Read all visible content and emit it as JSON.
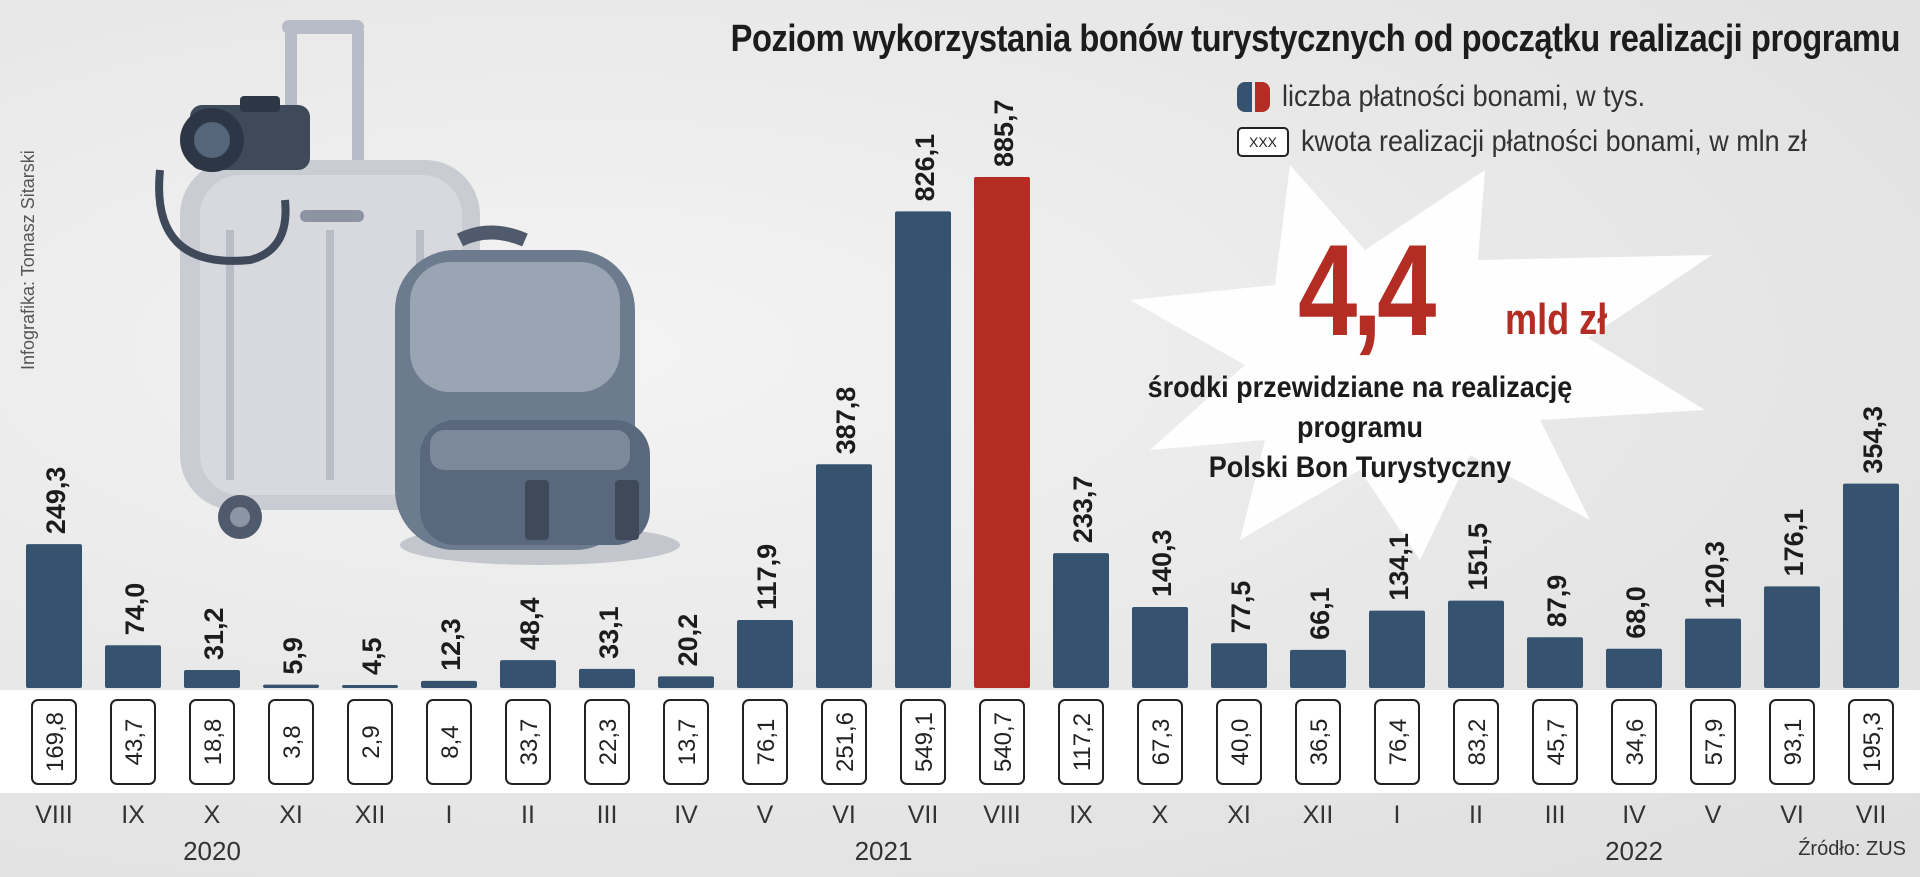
{
  "title": "Poziom wykorzystania bonów turystycznych od początku realizacji programu",
  "credit": "Infografika: Tomasz Sitarski",
  "legend": {
    "payments_label": "liczba płatności bonami, w tys.",
    "amount_label": "kwota realizacji płatności bonami, w mln zł",
    "box_icon_text": "XXX"
  },
  "highlight": {
    "number": "4,4",
    "unit": "mld zł",
    "caption_line1": "środki przewidziane na realizację programu",
    "caption_line2": "Polski Bon Turystyczny"
  },
  "source": "Źródło: ZUS",
  "colors": {
    "bar": "#35536e",
    "highlight_bar": "#b42d24",
    "background": "#e9e9e9"
  },
  "chart_data": {
    "type": "bar",
    "title": "Poziom wykorzystania bonów turystycznych od początku realizacji programu",
    "categories": [
      "VIII",
      "IX",
      "X",
      "XI",
      "XII",
      "I",
      "II",
      "III",
      "IV",
      "V",
      "VI",
      "VII",
      "VIII",
      "IX",
      "X",
      "XI",
      "XII",
      "I",
      "II",
      "III",
      "IV",
      "V",
      "VI",
      "VII"
    ],
    "years": [
      {
        "label": "2020",
        "from": 0,
        "to": 4
      },
      {
        "label": "2021",
        "from": 5,
        "to": 16
      },
      {
        "label": "2022",
        "from": 17,
        "to": 23
      }
    ],
    "series": [
      {
        "name": "liczba płatności bonami, w tys.",
        "values": [
          249.3,
          74.0,
          31.2,
          5.9,
          4.5,
          12.3,
          48.4,
          33.1,
          20.2,
          117.9,
          387.8,
          826.1,
          885.7,
          233.7,
          140.3,
          77.5,
          66.1,
          134.1,
          151.5,
          87.9,
          68.0,
          120.3,
          176.1,
          354.3
        ],
        "labels": [
          "249,3",
          "74,0",
          "31,2",
          "5,9",
          "4,5",
          "12,3",
          "48,4",
          "33,1",
          "20,2",
          "117,9",
          "387,8",
          "826,1",
          "885,7",
          "233,7",
          "140,3",
          "77,5",
          "66,1",
          "134,1",
          "151,5",
          "87,9",
          "68,0",
          "120,3",
          "176,1",
          "354,3"
        ]
      },
      {
        "name": "kwota realizacji płatności bonami, w mln zł",
        "values": [
          169.8,
          43.7,
          18.8,
          3.8,
          2.9,
          8.4,
          33.7,
          22.3,
          13.7,
          76.1,
          251.6,
          549.1,
          540.7,
          117.2,
          67.3,
          40.0,
          36.5,
          76.4,
          83.2,
          45.7,
          34.6,
          57.9,
          93.1,
          195.3
        ],
        "labels": [
          "169,8",
          "43,7",
          "18,8",
          "3,8",
          "2,9",
          "8,4",
          "33,7",
          "22,3",
          "13,7",
          "76,1",
          "251,6",
          "549,1",
          "540,7",
          "117,2",
          "67,3",
          "40,0",
          "36,5",
          "76,4",
          "83,2",
          "45,7",
          "34,6",
          "57,9",
          "93,1",
          "195,3"
        ]
      }
    ],
    "highlight_index": 12,
    "ylim": [
      0,
      885.7
    ],
    "grid": false
  }
}
